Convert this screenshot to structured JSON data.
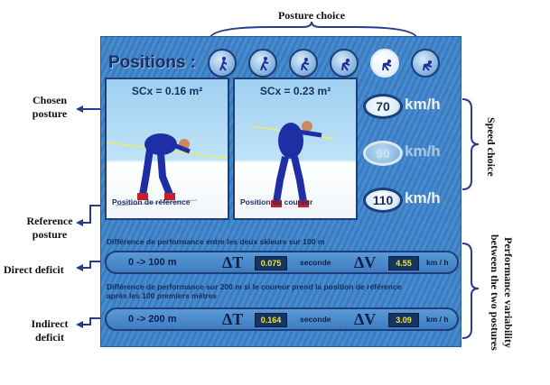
{
  "annotations": {
    "posture_choice": "Posture choice",
    "chosen_posture_1": "Chosen",
    "chosen_posture_2": "posture",
    "reference_posture_1": "Reference",
    "reference_posture_2": "posture",
    "direct_deficit": "Direct deficit",
    "indirect_deficit_1": "Indirect",
    "indirect_deficit_2": "deficit",
    "speed_choice": "Speed choice",
    "performance_variability_1": "Performance variability",
    "performance_variability_2": "between the two postures"
  },
  "app": {
    "title": "Positions :",
    "positions": [
      {
        "icon": "skier-position-1-icon",
        "selected": false
      },
      {
        "icon": "skier-position-2-icon",
        "selected": false
      },
      {
        "icon": "skier-position-3-icon",
        "selected": false
      },
      {
        "icon": "skier-position-4-icon",
        "selected": false
      },
      {
        "icon": "skier-position-5-icon",
        "selected": true
      },
      {
        "icon": "skier-position-6-icon",
        "selected": false
      }
    ],
    "reference_photo": {
      "scx": "SCx = 0.16 m²",
      "caption": "Position de référence"
    },
    "runner_photo": {
      "scx": "SCx = 0.23 m²",
      "caption": "Position du coureur"
    },
    "speeds": [
      {
        "value": "70",
        "unit": "km/h",
        "active": true
      },
      {
        "value": "90",
        "unit": "km/h",
        "active": false
      },
      {
        "value": "110",
        "unit": "km/h",
        "active": true
      }
    ],
    "info_100": "Différence de performance entre les deux skieurs sur 100 m",
    "info_200_line1": "Différence de performance sur 200 m si le coureur prend la position de référence",
    "info_200_line2": "après les 100 premiers mètres",
    "row_100": {
      "range": "0 -> 100 m",
      "delta_t_symbol": "ΔT",
      "delta_t": "0.075",
      "t_unit": "seconde",
      "delta_v_symbol": "ΔV",
      "delta_v": "4.55",
      "v_unit": "km / h"
    },
    "row_200": {
      "range": "0 -> 200 m",
      "delta_t_symbol": "ΔT",
      "delta_t": "0.164",
      "t_unit": "seconde",
      "delta_v_symbol": "ΔV",
      "delta_v": "3.09",
      "v_unit": "km / h"
    }
  },
  "colors": {
    "accent": "#1b2f63",
    "panel": "#3b7fc4",
    "value_text": "#f2e833",
    "annotation_arrow": "#2a3a8c"
  }
}
